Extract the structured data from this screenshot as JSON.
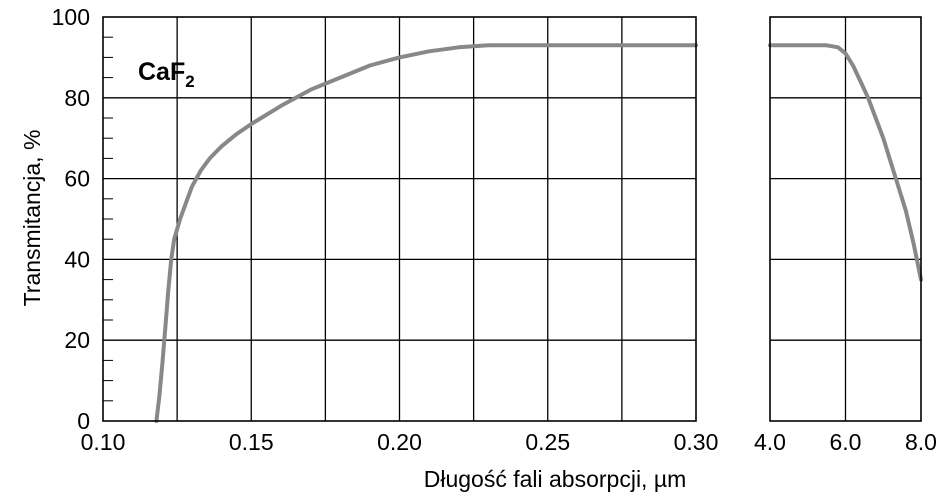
{
  "chart_data": {
    "type": "line",
    "title": "",
    "xlabel": "Długość fali absorpcji, µm",
    "ylabel": "Transmitancja, %",
    "annotation": {
      "text": "CaF",
      "subscript": "2"
    },
    "grid": true,
    "legend": "none",
    "ylim": [
      0,
      100
    ],
    "y_ticks": [
      0,
      20,
      40,
      60,
      80,
      100
    ],
    "y_tick_labels": [
      "0",
      "20",
      "40",
      "60",
      "80",
      "100"
    ],
    "panels": [
      {
        "xlim": [
          0.1,
          0.3
        ],
        "x_ticks": [
          0.1,
          0.15,
          0.2,
          0.25,
          0.3
        ],
        "x_tick_labels": [
          "0.10",
          "0.15",
          "0.20",
          "0.25",
          "0.30"
        ],
        "x_gridlines": [
          0.125,
          0.15,
          0.175,
          0.2,
          0.225,
          0.25,
          0.275
        ],
        "series": [
          {
            "color": "#888888",
            "x": [
              0.118,
              0.119,
              0.12,
              0.121,
              0.122,
              0.123,
              0.124,
              0.126,
              0.128,
              0.13,
              0.133,
              0.136,
              0.14,
              0.145,
              0.15,
              0.16,
              0.17,
              0.18,
              0.19,
              0.2,
              0.21,
              0.22,
              0.23,
              0.25,
              0.27,
              0.3
            ],
            "y": [
              0,
              6,
              14,
              23,
              32,
              40,
              45,
              50,
              54,
              58,
              62,
              65,
              68,
              71,
              73.5,
              78,
              82,
              85,
              88,
              90,
              91.5,
              92.5,
              93,
              93,
              93,
              93
            ]
          }
        ]
      },
      {
        "xlim": [
          4.0,
          8.0
        ],
        "x_ticks": [
          4.0,
          6.0,
          8.0
        ],
        "x_tick_labels": [
          "4.0",
          "6.0",
          "8.0"
        ],
        "x_gridlines": [
          6.0
        ],
        "series": [
          {
            "color": "#888888",
            "x": [
              4.0,
              5.0,
              5.5,
              5.8,
              6.0,
              6.2,
              6.4,
              6.6,
              6.8,
              7.0,
              7.2,
              7.4,
              7.6,
              7.8,
              8.0
            ],
            "y": [
              93,
              93,
              93,
              92.5,
              91,
              88,
              84,
              80,
              75,
              70,
              64,
              58,
              52,
              44,
              35
            ]
          }
        ]
      }
    ]
  }
}
